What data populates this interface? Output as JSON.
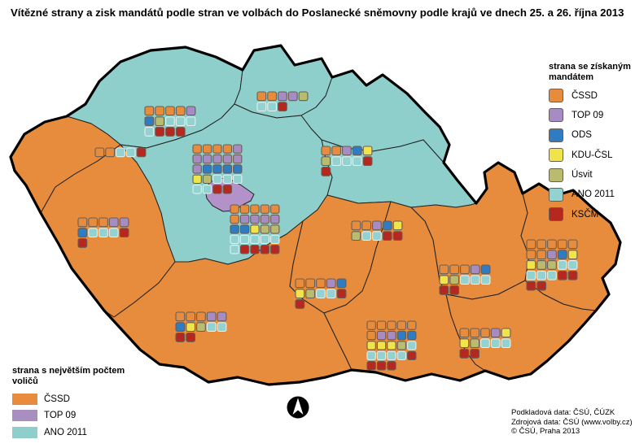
{
  "title": "Vítězné strany a zisk mandátů podle stran ve volbách do Poslanecké sněmovny podle krajů ve dnech 25. a 26. října 2013",
  "parties": {
    "CSSD": {
      "label": "ČSSD",
      "color": "#E78C3C"
    },
    "TOP09": {
      "label": "TOP 09",
      "color": "#A78CC3"
    },
    "ODS": {
      "label": "ODS",
      "color": "#2E7CC3"
    },
    "KDU": {
      "label": "KDU-ČSL",
      "color": "#F1E34A"
    },
    "USVIT": {
      "label": "Úsvit",
      "color": "#B9BC6E"
    },
    "ANO": {
      "label": "ANO 2011",
      "color": "#93D2D0"
    },
    "KSCM": {
      "label": "KSČM",
      "color": "#B5271F"
    }
  },
  "legend_mandates": {
    "title": "strana se získaným mandátem",
    "items": [
      "CSSD",
      "TOP09",
      "ODS",
      "KDU",
      "USVIT",
      "ANO",
      "KSCM"
    ]
  },
  "legend_winner": {
    "title": "strana s největším počtem voličů",
    "items": [
      "CSSD",
      "TOP09",
      "ANO"
    ],
    "colors": {
      "CSSD": "#E78C3C",
      "TOP09": "#A98FC0",
      "ANO": "#8FCFCB"
    }
  },
  "attribution": {
    "line1": "Podkladová data: ČSÚ, ČÚZK",
    "line2": "Zdrojová data: ČSÚ (www.volby.cz)",
    "line3": "© ČSÚ, Praha 2013"
  },
  "map": {
    "winner_colors": {
      "CSSD": "#E78C3C",
      "TOP09": "#B292C9",
      "ANO": "#8FCFCB"
    },
    "regions": [
      {
        "id": "ustecky",
        "winner": "ANO",
        "grid": [
          [
            "CSSD",
            "CSSD",
            "CSSD",
            "CSSD",
            "TOP09"
          ],
          [
            "ODS",
            "USVIT",
            "ANO",
            "ANO",
            "ANO"
          ],
          [
            "ANO",
            "KSCM",
            "KSCM",
            "KSCM"
          ]
        ]
      },
      {
        "id": "liberecky",
        "winner": "ANO",
        "grid": [
          [
            "CSSD",
            "CSSD",
            "TOP09",
            "TOP09",
            "USVIT"
          ],
          [
            "ANO",
            "ANO",
            "KSCM"
          ]
        ]
      },
      {
        "id": "kralovehradecky",
        "winner": "ANO",
        "grid": [
          [
            "CSSD",
            "CSSD",
            "TOP09",
            "ODS",
            "KDU"
          ],
          [
            "USVIT",
            "ANO",
            "ANO",
            "ANO",
            "KSCM"
          ],
          [
            "KSCM"
          ]
        ]
      },
      {
        "id": "pardubicky",
        "winner": "ANO",
        "grid": [
          [
            "CSSD",
            "CSSD",
            "TOP09",
            "ODS",
            "KDU"
          ],
          [
            "USVIT",
            "ANO",
            "ANO",
            "KSCM",
            "KSCM"
          ]
        ]
      },
      {
        "id": "stredocesky",
        "winner": "ANO",
        "grid": [
          [
            "CSSD",
            "CSSD",
            "CSSD",
            "CSSD",
            "CSSD"
          ],
          [
            "CSSD",
            "TOP09",
            "TOP09",
            "TOP09",
            "TOP09"
          ],
          [
            "ODS",
            "ODS",
            "KDU",
            "USVIT",
            "USVIT"
          ],
          [
            "ANO",
            "ANO",
            "ANO",
            "ANO",
            "ANO"
          ],
          [
            "ANO",
            "KSCM",
            "KSCM",
            "KSCM",
            "KSCM"
          ]
        ]
      },
      {
        "id": "karlovarsky",
        "winner": "CSSD",
        "grid": [
          [
            "CSSD",
            "CSSD",
            "ANO",
            "ANO",
            "KSCM"
          ]
        ]
      },
      {
        "id": "plzensky",
        "winner": "CSSD",
        "grid": [
          [
            "CSSD",
            "CSSD",
            "CSSD",
            "TOP09",
            "TOP09"
          ],
          [
            "ODS",
            "ANO",
            "ANO",
            "ANO",
            "KSCM"
          ],
          [
            "KSCM"
          ]
        ]
      },
      {
        "id": "jihocesky",
        "winner": "CSSD",
        "grid": [
          [
            "CSSD",
            "CSSD",
            "CSSD",
            "TOP09",
            "TOP09"
          ],
          [
            "ODS",
            "KDU",
            "USVIT",
            "ANO",
            "ANO"
          ],
          [
            "KSCM",
            "KSCM"
          ]
        ]
      },
      {
        "id": "vysocina",
        "winner": "CSSD",
        "grid": [
          [
            "CSSD",
            "CSSD",
            "CSSD",
            "TOP09",
            "ODS"
          ],
          [
            "KDU",
            "USVIT",
            "ANO",
            "ANO",
            "KSCM"
          ],
          [
            "KSCM"
          ]
        ]
      },
      {
        "id": "jihomoravsky",
        "winner": "CSSD",
        "grid": [
          [
            "CSSD",
            "CSSD",
            "CSSD",
            "CSSD",
            "CSSD"
          ],
          [
            "CSSD",
            "TOP09",
            "TOP09",
            "ODS",
            "ODS"
          ],
          [
            "KDU",
            "KDU",
            "KDU",
            "USVIT",
            "ANO"
          ],
          [
            "ANO",
            "ANO",
            "ANO",
            "ANO",
            "KSCM"
          ],
          [
            "KSCM",
            "KSCM",
            "KSCM"
          ]
        ]
      },
      {
        "id": "olomoucky",
        "winner": "CSSD",
        "grid": [
          [
            "CSSD",
            "CSSD",
            "CSSD",
            "TOP09",
            "ODS"
          ],
          [
            "KDU",
            "USVIT",
            "ANO",
            "ANO",
            "ANO"
          ],
          [
            "KSCM",
            "KSCM"
          ]
        ]
      },
      {
        "id": "zlinsky",
        "winner": "CSSD",
        "grid": [
          [
            "CSSD",
            "CSSD",
            "CSSD",
            "TOP09",
            "KDU"
          ],
          [
            "KDU",
            "USVIT",
            "ANO",
            "ANO",
            "ANO"
          ],
          [
            "KSCM",
            "KSCM"
          ]
        ]
      },
      {
        "id": "moravskoslezsky",
        "winner": "CSSD",
        "grid": [
          [
            "CSSD",
            "CSSD",
            "CSSD",
            "CSSD",
            "CSSD"
          ],
          [
            "CSSD",
            "CSSD",
            "TOP09",
            "ODS",
            "KDU"
          ],
          [
            "KDU",
            "USVIT",
            "USVIT",
            "ANO",
            "ANO"
          ],
          [
            "ANO",
            "ANO",
            "ANO",
            "KSCM",
            "KSCM"
          ],
          [
            "KSCM",
            "KSCM"
          ]
        ]
      },
      {
        "id": "praha",
        "winner": "TOP09",
        "grid": [
          [
            "CSSD",
            "CSSD",
            "CSSD",
            "CSSD",
            "TOP09"
          ],
          [
            "TOP09",
            "TOP09",
            "TOP09",
            "TOP09",
            "TOP09"
          ],
          [
            "TOP09",
            "ODS",
            "ODS",
            "ODS",
            "ODS"
          ],
          [
            "KDU",
            "USVIT",
            "ANO",
            "ANO",
            "ANO"
          ],
          [
            "ANO",
            "ANO",
            "KSCM",
            "KSCM"
          ]
        ]
      }
    ]
  }
}
